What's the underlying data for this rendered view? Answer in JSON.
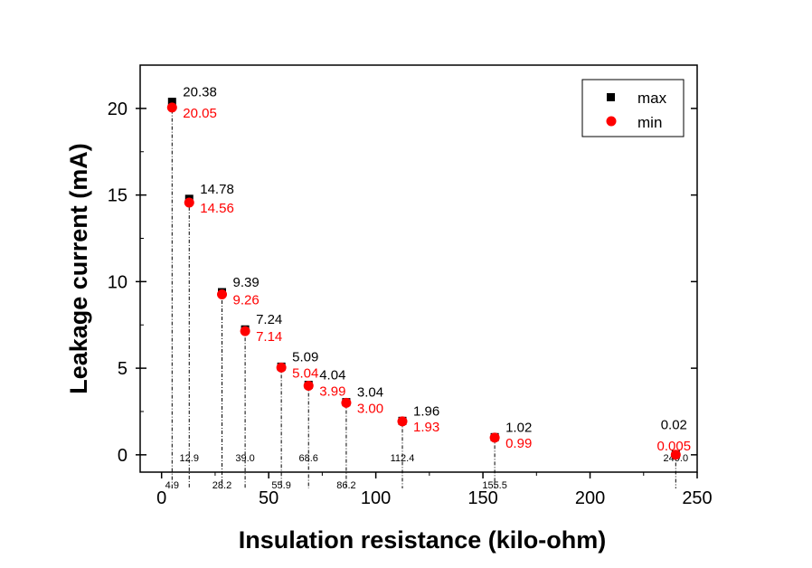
{
  "chart_data": {
    "type": "scatter",
    "title": "",
    "xlabel": "Insulation resistance (kilo-ohm)",
    "ylabel": "Leakage current (mA)",
    "xlim": [
      -10,
      250
    ],
    "ylim": [
      -1,
      22.5
    ],
    "xticks": [
      0,
      50,
      100,
      150,
      200,
      250
    ],
    "xtick_labels": [
      "0",
      "50",
      "100",
      "150",
      "200",
      "250"
    ],
    "yticks": [
      0,
      5,
      10,
      15,
      20
    ],
    "ytick_labels": [
      "0",
      "5",
      "10",
      "15",
      "20"
    ],
    "grid": false,
    "legend_position": "top-right",
    "colors": {
      "max": "#000000",
      "min": "#ff0000"
    },
    "x": [
      4.9,
      12.9,
      28.2,
      39.0,
      55.9,
      68.6,
      86.2,
      112.4,
      155.5,
      240.0
    ],
    "x_labels": [
      "4.9",
      "12.9",
      "28.2",
      "39.0",
      "55.9",
      "68.6",
      "86.2",
      "112.4",
      "155.5",
      "240.0"
    ],
    "series": [
      {
        "name": "max",
        "marker": "square",
        "values": [
          20.38,
          14.78,
          9.39,
          7.24,
          5.09,
          4.04,
          3.04,
          1.96,
          1.02,
          0.02
        ],
        "labels": [
          "20.38",
          "14.78",
          "9.39",
          "7.24",
          "5.09",
          "4.04",
          "3.04",
          "1.96",
          "1.02",
          "0.02"
        ]
      },
      {
        "name": "min",
        "marker": "circle",
        "values": [
          20.05,
          14.56,
          9.26,
          7.14,
          5.04,
          3.99,
          3.0,
          1.93,
          0.99,
          0.005
        ],
        "labels": [
          "20.05",
          "14.56",
          "9.26",
          "7.14",
          "5.04",
          "3.99",
          "3.00",
          "1.93",
          "0.99",
          "0.005"
        ]
      }
    ]
  }
}
